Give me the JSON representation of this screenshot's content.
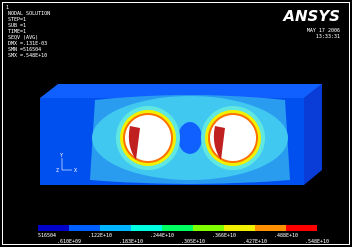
{
  "info": {
    "window_number": "1",
    "lines": [
      "NODAL SOLUTION",
      "STEP=1",
      "SUB =1",
      "TIME=1",
      "SEQV     (AVG)",
      "DMX =.131E-03",
      "SMN =516504",
      "SMX =.548E+10"
    ]
  },
  "brand": {
    "logo": "ANSYS",
    "date": "MAY 17 2006",
    "time": "13:33:31"
  },
  "legend": {
    "upper_labels": [
      "516504",
      ".122E+10",
      ".244E+10",
      ".366E+10",
      ".488E+10"
    ],
    "lower_labels": [
      ".610E+09",
      ".183E+10",
      ".305E+10",
      ".427E+10",
      ".548E+10"
    ]
  },
  "triad": {
    "y": "Y",
    "z": "Z",
    "x": "X"
  }
}
